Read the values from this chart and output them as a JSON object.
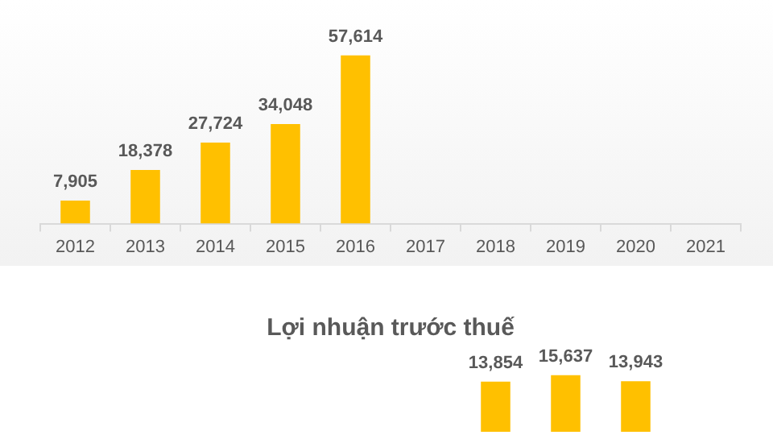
{
  "chart_data": [
    {
      "type": "bar",
      "categories": [
        "2012",
        "2013",
        "2014",
        "2015",
        "2016",
        "2017",
        "2018",
        "2019",
        "2020",
        "2021"
      ],
      "values": [
        7905,
        18378,
        27724,
        34048,
        57614,
        null,
        null,
        null,
        null,
        null
      ],
      "value_labels": [
        "7,905",
        "18,378",
        "27,724",
        "34,048",
        "57,614",
        null,
        null,
        null,
        null,
        null
      ],
      "color": "#ffc000",
      "tick_labels": "x"
    },
    {
      "type": "bar",
      "title": "Lợi nhuận trước thuế",
      "categories": [
        null,
        null,
        null,
        null,
        null,
        null,
        null,
        null,
        null,
        null
      ],
      "values": [
        null,
        null,
        null,
        null,
        null,
        null,
        13854,
        15637,
        13943,
        null
      ],
      "value_labels": [
        null,
        null,
        null,
        null,
        null,
        null,
        "13,854",
        "15,637",
        "13,943",
        null
      ],
      "color": "#ffc000",
      "tick_labels": false
    }
  ]
}
